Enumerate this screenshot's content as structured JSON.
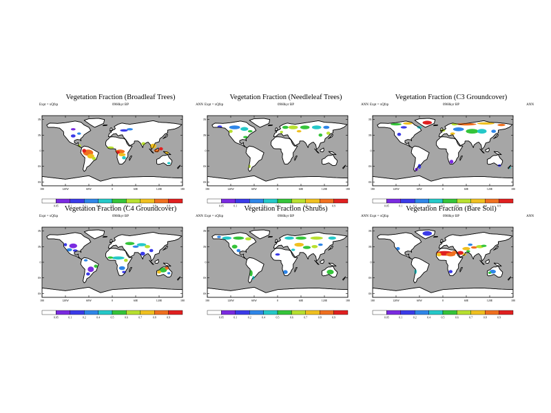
{
  "lat_labels": [
    "80N",
    "40N",
    "0",
    "40S",
    "80S"
  ],
  "lon_labels": [
    "180",
    "120W",
    "60W",
    "0",
    "60E",
    "120E",
    "180"
  ],
  "legend_labels": [
    "0.05",
    "0.1",
    "0.2",
    "0.4",
    "0.5",
    "0.6",
    "0.7",
    "0.8",
    "0.9"
  ],
  "colorbar_colors": [
    "#ffffff",
    "#7a2be0",
    "#3b3be8",
    "#2f86e8",
    "#25c8c8",
    "#35c43a",
    "#b8e030",
    "#f0c020",
    "#f07020",
    "#e02020"
  ],
  "colors": {
    "ocean": "#a6a6a6",
    "land": "#ffffff",
    "frame": "#000000"
  },
  "panels": [
    {
      "title": "Vegetation Fraction (Broadleaf Trees)",
      "expt": "Expt = xQfzp",
      "period": "0960kyr BP",
      "season": "ANN"
    },
    {
      "title": "Vegetation Fraction (Needleleaf Trees)",
      "expt": "Expt = xQfzp",
      "period": "0960kyr BP",
      "season": "ANN"
    },
    {
      "title": "Vegetation Fraction (C3 Groundcover)",
      "expt": "Expt = xQfzp",
      "period": "0960kyr BP",
      "season": "ANN"
    },
    {
      "title": "Vegetation Fraction (C4 Groundcover)",
      "expt": "Expt = xQfzp",
      "period": "0960kyr BP",
      "season": "ANN"
    },
    {
      "title": "Vegetation Fraction (Shrubs)",
      "expt": "Expt = xQfzp",
      "period": "0960kyr BP",
      "season": "ANN"
    },
    {
      "title": "Vegetation Fraction (Bare Soil)",
      "expt": "Expt = xQfzp",
      "period": "0960kyr BP",
      "season": "ANN"
    }
  ]
}
